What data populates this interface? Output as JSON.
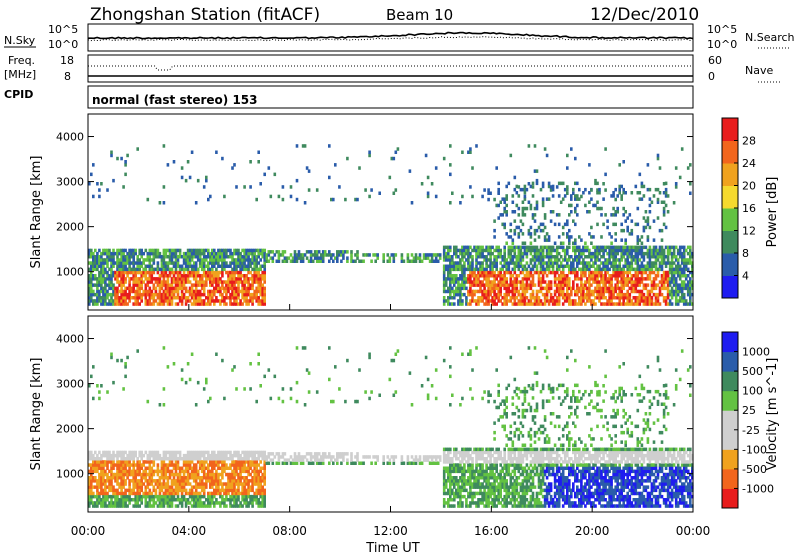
{
  "header": {
    "station": "Zhongshan Station (fitACF)",
    "beam": "Beam 10",
    "date": "12/Dec/2010"
  },
  "noise_panel": {
    "left_label": "N.Sky",
    "left_ticks": [
      "10^5",
      "10^0"
    ],
    "right_ticks": [
      "10^5",
      "10^0"
    ],
    "right_label": "N.Search"
  },
  "freq_panel": {
    "left_label_1": "Freq.",
    "left_label_2": "[MHz]",
    "left_ticks": [
      "18",
      "8"
    ],
    "right_ticks": [
      "60",
      "0"
    ],
    "right_label": "Nave"
  },
  "cpid_panel": {
    "label": "CPID",
    "text": "normal (fast stereo) 153"
  },
  "colors": {
    "power_scale": [
      "#1f1cf0",
      "#2a5caa",
      "#3f8a5e",
      "#63c242",
      "#f5d92e",
      "#f0a21e",
      "#f2651c",
      "#e81c1c"
    ],
    "velocity_scale": [
      "#e81c1c",
      "#f2651c",
      "#f0a21e",
      "#cfcfcf",
      "#cfcfcf",
      "#63c242",
      "#3f8a5e",
      "#2a5caa",
      "#1f1cf0"
    ]
  },
  "chart_data": [
    {
      "type": "heatmap",
      "name": "power",
      "ylabel": "Slant Range [km]",
      "yticks": [
        "1000",
        "2000",
        "3000",
        "4000"
      ],
      "ylim": [
        150,
        4500
      ],
      "colorbar_label": "Power [dB]",
      "colorbar_ticks": [
        "4",
        "8",
        "12",
        "16",
        "20",
        "24",
        "28"
      ],
      "colorbar_range": [
        0,
        32
      ]
    },
    {
      "type": "heatmap",
      "name": "velocity",
      "ylabel": "Slant Range [km]",
      "yticks": [
        "1000",
        "2000",
        "3000",
        "4000"
      ],
      "ylim": [
        150,
        4500
      ],
      "colorbar_label": "Velocity [m s^-1]",
      "colorbar_ticks": [
        "1000",
        "500",
        "100",
        "25",
        "-25",
        "-100",
        "-500",
        "-1000"
      ]
    }
  ],
  "xaxis": {
    "label": "Time UT",
    "ticks": [
      "00:00",
      "04:00",
      "08:00",
      "12:00",
      "16:00",
      "20:00",
      "00:00"
    ]
  }
}
